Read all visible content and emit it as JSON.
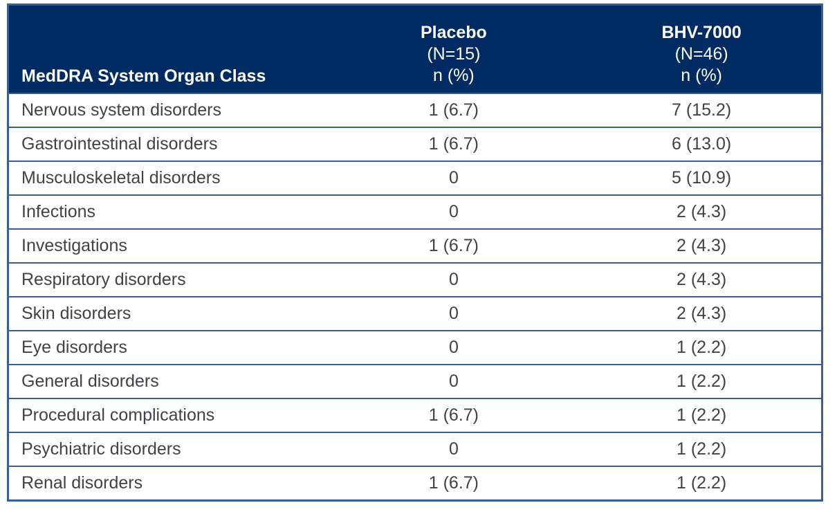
{
  "header": {
    "organ_class": "MedDRA System Organ Class",
    "placebo": {
      "name": "Placebo",
      "n": "(N=15)",
      "unit": "n (%)"
    },
    "bhv7000": {
      "name": "BHV-7000",
      "n": "(N=46)",
      "unit": "n (%)"
    }
  },
  "rows": [
    {
      "organ_class": "Nervous system disorders",
      "placebo": "1 (6.7)",
      "bhv7000": "7 (15.2)"
    },
    {
      "organ_class": "Gastrointestinal disorders",
      "placebo": "1 (6.7)",
      "bhv7000": "6 (13.0)"
    },
    {
      "organ_class": "Musculoskeletal disorders",
      "placebo": "0",
      "bhv7000": "5 (10.9)"
    },
    {
      "organ_class": "Infections",
      "placebo": "0",
      "bhv7000": "2 (4.3)"
    },
    {
      "organ_class": "Investigations",
      "placebo": "1 (6.7)",
      "bhv7000": "2 (4.3)"
    },
    {
      "organ_class": "Respiratory disorders",
      "placebo": "0",
      "bhv7000": "2 (4.3)"
    },
    {
      "organ_class": "Skin disorders",
      "placebo": "0",
      "bhv7000": "2 (4.3)"
    },
    {
      "organ_class": "Eye disorders",
      "placebo": "0",
      "bhv7000": "1 (2.2)"
    },
    {
      "organ_class": "General disorders",
      "placebo": "0",
      "bhv7000": "1 (2.2)"
    },
    {
      "organ_class": "Procedural complications",
      "placebo": "1 (6.7)",
      "bhv7000": "1 (2.2)"
    },
    {
      "organ_class": "Psychiatric disorders",
      "placebo": "0",
      "bhv7000": "1 (2.2)"
    },
    {
      "organ_class": "Renal disorders",
      "placebo": "1 (6.7)",
      "bhv7000": "1 (2.2)"
    }
  ],
  "colors": {
    "header_bg": "#002B62",
    "header_text": "#FFFFFF",
    "body_text": "#404245",
    "grid_line": "#3A5F94",
    "row_bg": "#FFFFFF",
    "page_bg": "#FFFFFF"
  }
}
